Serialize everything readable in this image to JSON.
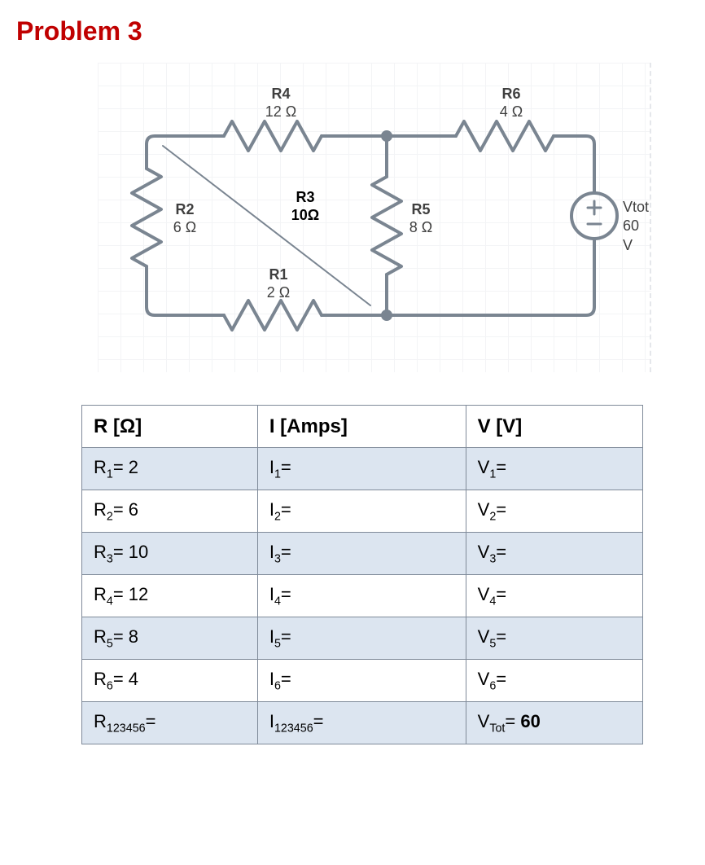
{
  "title": "Problem 3",
  "colors": {
    "title": "#c00000",
    "circuit_stroke": "#7a8591",
    "grid_line": "#f3f4f6",
    "table_border": "#7f8a99",
    "table_shaded": "#dce5f0",
    "table_plain": "#ffffff",
    "label_text": "#3f3f3f"
  },
  "circuit": {
    "components": {
      "R1": {
        "name": "R1",
        "value": "2 Ω"
      },
      "R2": {
        "name": "R2",
        "value": "6 Ω"
      },
      "R3": {
        "name": "R3",
        "value": "10Ω"
      },
      "R4": {
        "name": "R4",
        "value": "12 Ω"
      },
      "R5": {
        "name": "R5",
        "value": "8 Ω"
      },
      "R6": {
        "name": "R6",
        "value": "4 Ω"
      },
      "Vtot": {
        "name": "Vtot",
        "value": "60 V"
      }
    }
  },
  "table": {
    "headers": {
      "col1": "R [Ω]",
      "col2": "I [Amps]",
      "col3": "V [V]"
    },
    "rows": [
      {
        "r_sub": "1",
        "r_val": "2",
        "i_sub": "1",
        "i_val": "",
        "v_sub": "1",
        "v_val": "",
        "shaded": true
      },
      {
        "r_sub": "2",
        "r_val": "6",
        "i_sub": "2",
        "i_val": "",
        "v_sub": "2",
        "v_val": "",
        "shaded": false
      },
      {
        "r_sub": "3",
        "r_val": "10",
        "i_sub": "3",
        "i_val": "",
        "v_sub": "3",
        "v_val": "",
        "shaded": true
      },
      {
        "r_sub": "4",
        "r_val": "12",
        "i_sub": "4",
        "i_val": "",
        "v_sub": "4",
        "v_val": "",
        "shaded": false
      },
      {
        "r_sub": "5",
        "r_val": "8",
        "i_sub": "5",
        "i_val": "",
        "v_sub": "5",
        "v_val": "",
        "shaded": true
      },
      {
        "r_sub": "6",
        "r_val": "4",
        "i_sub": "6",
        "i_val": "",
        "v_sub": "6",
        "v_val": "",
        "shaded": false
      }
    ],
    "total_row": {
      "r_sub": "123456",
      "r_val": "",
      "i_sub": "123456",
      "i_val": "",
      "v_sub": "Tot",
      "v_val": "60",
      "v_bold": true,
      "shaded": true
    }
  }
}
